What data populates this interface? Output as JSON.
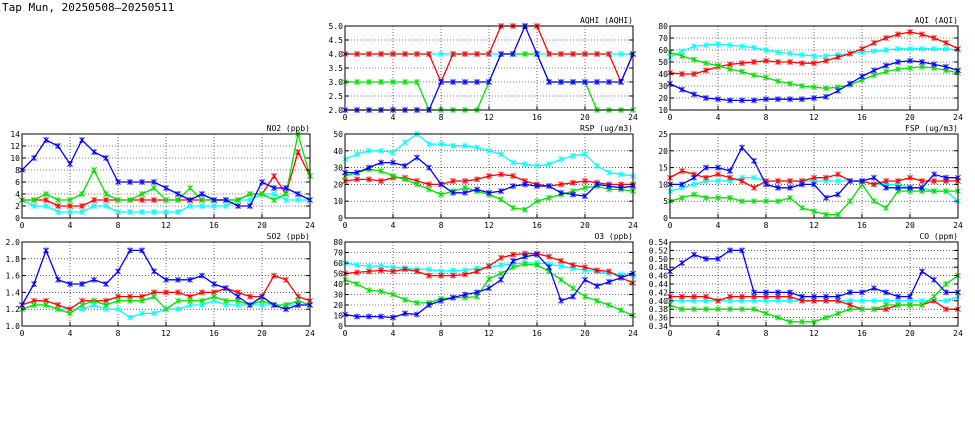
{
  "page": {
    "title": "Tap Mun, 20250508–20250511"
  },
  "colors": {
    "blue": "#0000ff",
    "red": "#ff0000",
    "green": "#00e000",
    "cyan": "#00ffff",
    "grid": "#000000"
  },
  "chart_data": [
    {
      "id": "aqhi",
      "type": "line",
      "title": "AQHI (AQHI)",
      "xlim": [
        0,
        24
      ],
      "xticks": [
        0,
        4,
        8,
        12,
        16,
        20,
        24
      ],
      "ylim": [
        2.0,
        5.0
      ],
      "yticks": [
        "2.0",
        "2.5",
        "3.0",
        "3.5",
        "4.0",
        "4.5",
        "5.0"
      ],
      "series": [
        {
          "color": "#00ffff",
          "values": [
            4,
            4,
            4,
            4,
            4,
            4,
            4,
            4,
            4,
            4,
            4,
            4,
            4,
            4,
            4,
            4,
            4,
            4,
            4,
            4,
            4,
            4,
            4,
            4,
            4
          ]
        },
        {
          "color": "#ff0000",
          "values": [
            4,
            4,
            4,
            4,
            4,
            4,
            4,
            4,
            3,
            4,
            4,
            4,
            4,
            5,
            5,
            5,
            5,
            4,
            4,
            4,
            4,
            4,
            4,
            3,
            4
          ]
        },
        {
          "color": "#00e000",
          "values": [
            3,
            3,
            3,
            3,
            3,
            3,
            3,
            2,
            2,
            2,
            2,
            2,
            3,
            4,
            4,
            4,
            4,
            3,
            3,
            3,
            3,
            2,
            2,
            2,
            2
          ]
        },
        {
          "color": "#0000ff",
          "values": [
            2,
            2,
            2,
            2,
            2,
            2,
            2,
            2,
            3,
            3,
            3,
            3,
            3,
            4,
            4,
            5,
            4,
            3,
            3,
            3,
            3,
            3,
            3,
            3,
            4
          ]
        }
      ]
    },
    {
      "id": "aqi",
      "type": "line",
      "title": "AQI (AQI)",
      "xlim": [
        0,
        24
      ],
      "xticks": [
        0,
        4,
        8,
        12,
        16,
        20,
        24
      ],
      "ylim": [
        10,
        80
      ],
      "yticks": [
        "10",
        "20",
        "30",
        "40",
        "50",
        "60",
        "70",
        "80"
      ],
      "series": [
        {
          "color": "#00ffff",
          "values": [
            54,
            59,
            63,
            64,
            65,
            64,
            63,
            62,
            60,
            58,
            57,
            56,
            55,
            55,
            56,
            57,
            58,
            59,
            60,
            61,
            61,
            61,
            61,
            61,
            60
          ]
        },
        {
          "color": "#ff0000",
          "values": [
            41,
            40,
            40,
            43,
            46,
            48,
            49,
            50,
            51,
            50,
            50,
            49,
            49,
            51,
            54,
            57,
            61,
            66,
            70,
            73,
            75,
            73,
            70,
            66,
            61
          ]
        },
        {
          "color": "#00e000",
          "values": [
            58,
            55,
            52,
            49,
            47,
            44,
            42,
            39,
            37,
            34,
            32,
            30,
            29,
            28,
            29,
            31,
            35,
            39,
            42,
            44,
            45,
            46,
            45,
            43,
            41
          ]
        },
        {
          "color": "#0000ff",
          "values": [
            32,
            27,
            23,
            20,
            19,
            18,
            18,
            18,
            19,
            19,
            19,
            19,
            20,
            21,
            26,
            32,
            38,
            43,
            47,
            50,
            51,
            50,
            48,
            46,
            43
          ]
        }
      ]
    },
    {
      "id": "no2",
      "type": "line",
      "title": "NO2 (ppb)",
      "xlim": [
        0,
        24
      ],
      "xticks": [
        0,
        4,
        8,
        12,
        16,
        20,
        24
      ],
      "ylim": [
        0,
        14
      ],
      "yticks": [
        "0",
        "2",
        "4",
        "6",
        "8",
        "10",
        "12",
        "14"
      ],
      "series": [
        {
          "color": "#00ffff",
          "values": [
            3,
            2,
            2,
            1,
            1,
            1,
            2,
            2,
            1,
            1,
            1,
            1,
            1,
            1,
            2,
            2,
            2,
            2,
            3,
            3,
            4,
            4,
            3,
            3,
            3
          ]
        },
        {
          "color": "#ff0000",
          "values": [
            3,
            3,
            3,
            2,
            2,
            2,
            3,
            3,
            3,
            3,
            3,
            3,
            3,
            3,
            3,
            3,
            3,
            3,
            3,
            4,
            4,
            7,
            4,
            11,
            7
          ]
        },
        {
          "color": "#00e000",
          "values": [
            3,
            3,
            4,
            3,
            3,
            4,
            8,
            4,
            3,
            3,
            4,
            5,
            3,
            3,
            5,
            3,
            3,
            3,
            3,
            4,
            4,
            3,
            4,
            14,
            7
          ]
        },
        {
          "color": "#0000ff",
          "values": [
            8,
            10,
            13,
            12,
            9,
            13,
            11,
            10,
            6,
            6,
            6,
            6,
            5,
            4,
            3,
            4,
            3,
            3,
            2,
            2,
            6,
            5,
            5,
            4,
            3
          ]
        }
      ]
    },
    {
      "id": "rsp",
      "type": "line",
      "title": "RSP (ug/m3)",
      "xlim": [
        0,
        24
      ],
      "xticks": [
        0,
        4,
        8,
        12,
        16,
        20,
        24
      ],
      "ylim": [
        0,
        50
      ],
      "yticks": [
        "0",
        "10",
        "20",
        "30",
        "40",
        "50"
      ],
      "series": [
        {
          "color": "#00ffff",
          "values": [
            35,
            38,
            40,
            40,
            39,
            45,
            50,
            44,
            44,
            43,
            43,
            42,
            40,
            38,
            33,
            32,
            31,
            32,
            35,
            37,
            38,
            31,
            27,
            26,
            25
          ]
        },
        {
          "color": "#ff0000",
          "values": [
            22,
            23,
            23,
            22,
            24,
            24,
            22,
            20,
            20,
            22,
            22,
            23,
            25,
            26,
            25,
            22,
            20,
            19,
            20,
            21,
            22,
            21,
            20,
            20,
            20
          ]
        },
        {
          "color": "#00e000",
          "values": [
            25,
            27,
            29,
            28,
            25,
            23,
            20,
            17,
            14,
            16,
            18,
            16,
            14,
            11,
            6,
            5,
            10,
            12,
            14,
            16,
            18,
            19,
            17,
            17,
            16
          ]
        },
        {
          "color": "#0000ff",
          "values": [
            27,
            27,
            30,
            33,
            33,
            31,
            36,
            30,
            20,
            15,
            15,
            17,
            15,
            16,
            19,
            20,
            19,
            19,
            15,
            14,
            13,
            20,
            19,
            18,
            19
          ]
        }
      ]
    },
    {
      "id": "fsp",
      "type": "line",
      "title": "FSP (ug/m3)",
      "xlim": [
        0,
        24
      ],
      "xticks": [
        0,
        4,
        8,
        12,
        16,
        20,
        24
      ],
      "ylim": [
        0,
        25
      ],
      "yticks": [
        "0",
        "5",
        "10",
        "15",
        "20",
        "25"
      ],
      "series": [
        {
          "color": "#00ffff",
          "values": [
            8,
            9,
            10,
            11,
            11,
            11,
            12,
            12,
            11,
            11,
            11,
            11,
            11,
            11,
            11,
            11,
            11,
            10,
            10,
            10,
            9,
            9,
            8,
            8,
            5
          ]
        },
        {
          "color": "#ff0000",
          "values": [
            12,
            14,
            13,
            12,
            13,
            12,
            11,
            9,
            11,
            11,
            11,
            11,
            12,
            12,
            13,
            11,
            11,
            10,
            11,
            11,
            12,
            11,
            11,
            11,
            11
          ]
        },
        {
          "color": "#00e000",
          "values": [
            5,
            6,
            7,
            6,
            6,
            6,
            5,
            5,
            5,
            5,
            6,
            3,
            2,
            1,
            1,
            5,
            10,
            5,
            3,
            8,
            8,
            8,
            8,
            8,
            8
          ]
        },
        {
          "color": "#0000ff",
          "values": [
            10,
            10,
            12,
            15,
            15,
            14,
            21,
            17,
            10,
            9,
            9,
            10,
            10,
            6,
            7,
            11,
            11,
            12,
            9,
            9,
            9,
            9,
            13,
            12,
            12
          ]
        }
      ]
    },
    {
      "id": "so2",
      "type": "line",
      "title": "SO2 (ppb)",
      "xlim": [
        0,
        24
      ],
      "xticks": [
        0,
        4,
        8,
        12,
        16,
        20,
        24
      ],
      "ylim": [
        1.0,
        2.0
      ],
      "yticks": [
        "1.0",
        "1.2",
        "1.4",
        "1.6",
        "1.8",
        "2.0"
      ],
      "series": [
        {
          "color": "#00ffff",
          "values": [
            1.2,
            1.25,
            1.25,
            1.2,
            1.2,
            1.2,
            1.25,
            1.2,
            1.2,
            1.1,
            1.15,
            1.15,
            1.2,
            1.2,
            1.25,
            1.25,
            1.3,
            1.25,
            1.25,
            1.25,
            1.25,
            1.25,
            1.25,
            1.25,
            1.25
          ]
        },
        {
          "color": "#ff0000",
          "values": [
            1.25,
            1.3,
            1.3,
            1.25,
            1.2,
            1.3,
            1.3,
            1.3,
            1.35,
            1.35,
            1.35,
            1.4,
            1.4,
            1.4,
            1.35,
            1.4,
            1.4,
            1.45,
            1.4,
            1.35,
            1.35,
            1.6,
            1.55,
            1.35,
            1.3
          ]
        },
        {
          "color": "#00e000",
          "values": [
            1.2,
            1.25,
            1.25,
            1.2,
            1.15,
            1.25,
            1.3,
            1.25,
            1.3,
            1.3,
            1.3,
            1.35,
            1.2,
            1.3,
            1.3,
            1.3,
            1.35,
            1.3,
            1.3,
            1.25,
            1.3,
            1.25,
            1.25,
            1.3,
            1.25
          ]
        },
        {
          "color": "#0000ff",
          "values": [
            1.25,
            1.5,
            1.9,
            1.55,
            1.5,
            1.5,
            1.55,
            1.5,
            1.65,
            1.9,
            1.9,
            1.65,
            1.55,
            1.55,
            1.55,
            1.6,
            1.5,
            1.45,
            1.35,
            1.25,
            1.35,
            1.25,
            1.2,
            1.25,
            1.25
          ]
        }
      ]
    },
    {
      "id": "o3",
      "type": "line",
      "title": "O3 (ppb)",
      "xlim": [
        0,
        24
      ],
      "xticks": [
        0,
        4,
        8,
        12,
        16,
        20,
        24
      ],
      "ylim": [
        0,
        80
      ],
      "yticks": [
        "0",
        "10",
        "20",
        "30",
        "40",
        "50",
        "60",
        "70",
        "80"
      ],
      "series": [
        {
          "color": "#00ffff",
          "values": [
            60,
            58,
            57,
            57,
            56,
            55,
            54,
            54,
            52,
            53,
            53,
            55,
            56,
            58,
            59,
            60,
            60,
            59,
            57,
            55,
            53,
            52,
            50,
            49,
            48
          ]
        },
        {
          "color": "#ff0000",
          "values": [
            50,
            51,
            52,
            53,
            52,
            54,
            52,
            48,
            48,
            48,
            49,
            52,
            57,
            65,
            68,
            69,
            69,
            66,
            62,
            58,
            56,
            53,
            52,
            46,
            41
          ]
        },
        {
          "color": "#00e000",
          "values": [
            44,
            40,
            34,
            33,
            30,
            25,
            22,
            22,
            26,
            27,
            27,
            28,
            45,
            50,
            56,
            59,
            58,
            52,
            44,
            36,
            28,
            24,
            20,
            15,
            10
          ]
        },
        {
          "color": "#0000ff",
          "values": [
            11,
            9,
            9,
            9,
            8,
            12,
            11,
            20,
            24,
            27,
            30,
            32,
            36,
            44,
            62,
            66,
            68,
            56,
            24,
            28,
            44,
            38,
            42,
            46,
            50
          ]
        }
      ]
    },
    {
      "id": "co",
      "type": "line",
      "title": "CO (ppm)",
      "xlim": [
        0,
        24
      ],
      "xticks": [
        0,
        4,
        8,
        12,
        16,
        20,
        24
      ],
      "ylim": [
        0.34,
        0.54
      ],
      "yticks": [
        "0.34",
        "0.36",
        "0.38",
        "0.40",
        "0.42",
        "0.44",
        "0.46",
        "0.48",
        "0.50",
        "0.52",
        "0.54"
      ],
      "series": [
        {
          "color": "#00ffff",
          "values": [
            0.4,
            0.4,
            0.4,
            0.4,
            0.4,
            0.4,
            0.4,
            0.4,
            0.4,
            0.4,
            0.4,
            0.4,
            0.4,
            0.4,
            0.4,
            0.4,
            0.4,
            0.4,
            0.4,
            0.4,
            0.4,
            0.4,
            0.4,
            0.4,
            0.41
          ]
        },
        {
          "color": "#ff0000",
          "values": [
            0.41,
            0.41,
            0.41,
            0.41,
            0.4,
            0.41,
            0.41,
            0.41,
            0.41,
            0.41,
            0.41,
            0.4,
            0.4,
            0.4,
            0.4,
            0.39,
            0.38,
            0.38,
            0.38,
            0.39,
            0.39,
            0.39,
            0.4,
            0.38,
            0.38
          ]
        },
        {
          "color": "#00e000",
          "values": [
            0.39,
            0.38,
            0.38,
            0.38,
            0.38,
            0.38,
            0.38,
            0.38,
            0.37,
            0.36,
            0.35,
            0.35,
            0.35,
            0.36,
            0.37,
            0.38,
            0.38,
            0.38,
            0.39,
            0.39,
            0.39,
            0.39,
            0.41,
            0.44,
            0.46
          ]
        },
        {
          "color": "#0000ff",
          "values": [
            0.47,
            0.49,
            0.51,
            0.5,
            0.5,
            0.52,
            0.52,
            0.42,
            0.42,
            0.42,
            0.42,
            0.41,
            0.41,
            0.41,
            0.41,
            0.42,
            0.42,
            0.43,
            0.42,
            0.41,
            0.41,
            0.47,
            0.45,
            0.42,
            0.42
          ]
        }
      ]
    }
  ]
}
